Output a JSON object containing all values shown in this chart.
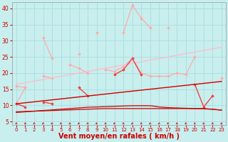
{
  "bg_color": "#c8eeee",
  "grid_color": "#aadddd",
  "xlabel": "Vent moyen/en rafales ( km/h )",
  "xlabel_color": "#cc0000",
  "xlabel_fontsize": 7,
  "tick_color": "#cc0000",
  "ylim": [
    4,
    42
  ],
  "xlim": [
    -0.5,
    23.5
  ],
  "yticks": [
    5,
    10,
    15,
    20,
    25,
    30,
    35,
    40
  ],
  "xticks": [
    0,
    1,
    2,
    3,
    4,
    5,
    6,
    7,
    8,
    9,
    10,
    11,
    12,
    13,
    14,
    15,
    16,
    17,
    18,
    19,
    20,
    21,
    22,
    23
  ],
  "series": [
    {
      "name": "pale_pink_jagged_high",
      "color": "#ffaaaa",
      "lw": 0.9,
      "marker": "D",
      "ms": 2.0,
      "data": [
        10.5,
        15.5,
        null,
        31.0,
        24.5,
        null,
        null,
        26.0,
        null,
        32.5,
        null,
        null,
        32.5,
        41.0,
        37.0,
        34.0,
        null,
        34.0,
        null,
        null,
        null,
        null,
        null,
        null
      ]
    },
    {
      "name": "pale_pink_middle",
      "color": "#ffaaaa",
      "lw": 0.9,
      "marker": "D",
      "ms": 2.0,
      "data": [
        16.0,
        15.5,
        null,
        19.0,
        18.5,
        null,
        22.5,
        21.5,
        20.0,
        null,
        21.0,
        20.5,
        22.0,
        24.5,
        20.0,
        19.0,
        19.0,
        19.0,
        20.0,
        19.5,
        25.0,
        null,
        null,
        18.5
      ]
    },
    {
      "name": "pale_pink_trend_upper",
      "color": "#ffbbcc",
      "lw": 0.9,
      "marker": null,
      "ms": 0,
      "data": [
        16.5,
        17.0,
        17.5,
        18.0,
        18.5,
        19.0,
        19.5,
        20.0,
        20.5,
        21.0,
        21.5,
        22.0,
        22.5,
        23.0,
        23.5,
        24.0,
        24.5,
        25.0,
        25.5,
        26.0,
        26.5,
        27.0,
        27.5,
        28.0
      ]
    },
    {
      "name": "pale_pink_trend_lower",
      "color": "#ffcccc",
      "lw": 0.9,
      "marker": null,
      "ms": 0,
      "data": [
        10.5,
        10.8,
        11.1,
        11.4,
        11.7,
        12.0,
        12.3,
        12.6,
        12.9,
        13.2,
        13.5,
        13.8,
        14.1,
        14.4,
        14.7,
        15.0,
        15.3,
        15.6,
        15.9,
        16.2,
        16.5,
        16.8,
        17.1,
        17.4
      ]
    },
    {
      "name": "medium_red_jagged",
      "color": "#ee4444",
      "lw": 1.0,
      "marker": "D",
      "ms": 2.0,
      "data": [
        10.5,
        9.5,
        null,
        11.0,
        10.5,
        null,
        null,
        15.5,
        13.0,
        null,
        null,
        19.5,
        21.0,
        24.5,
        19.5,
        null,
        null,
        null,
        null,
        null,
        16.5,
        9.5,
        13.0,
        null
      ]
    },
    {
      "name": "dark_red_trend1",
      "color": "#cc0000",
      "lw": 1.0,
      "marker": null,
      "ms": 0,
      "data": [
        10.5,
        10.8,
        11.1,
        11.4,
        11.7,
        12.0,
        12.3,
        12.6,
        12.9,
        13.2,
        13.5,
        13.8,
        14.1,
        14.4,
        14.7,
        15.0,
        15.3,
        15.6,
        15.9,
        16.2,
        16.5,
        16.8,
        17.1,
        17.4
      ]
    },
    {
      "name": "dark_red_trend2",
      "color": "#cc0000",
      "lw": 0.9,
      "marker": null,
      "ms": 0,
      "data": [
        7.8,
        8.0,
        8.2,
        8.4,
        8.6,
        8.8,
        9.0,
        9.2,
        9.4,
        9.5,
        9.6,
        9.7,
        9.8,
        9.9,
        9.9,
        9.9,
        9.5,
        9.3,
        9.2,
        9.1,
        9.0,
        9.0,
        8.8,
        8.5
      ]
    },
    {
      "name": "dark_red_flat",
      "color": "#cc0000",
      "lw": 0.9,
      "marker": null,
      "ms": 0,
      "data": [
        8.0,
        8.1,
        8.2,
        8.3,
        8.4,
        8.5,
        8.6,
        8.7,
        8.8,
        8.9,
        9.0,
        9.0,
        9.0,
        9.0,
        9.0,
        9.0,
        9.0,
        9.0,
        9.0,
        9.0,
        9.0,
        8.9,
        8.8,
        8.5
      ]
    }
  ],
  "arrow_color": "#cc2222"
}
